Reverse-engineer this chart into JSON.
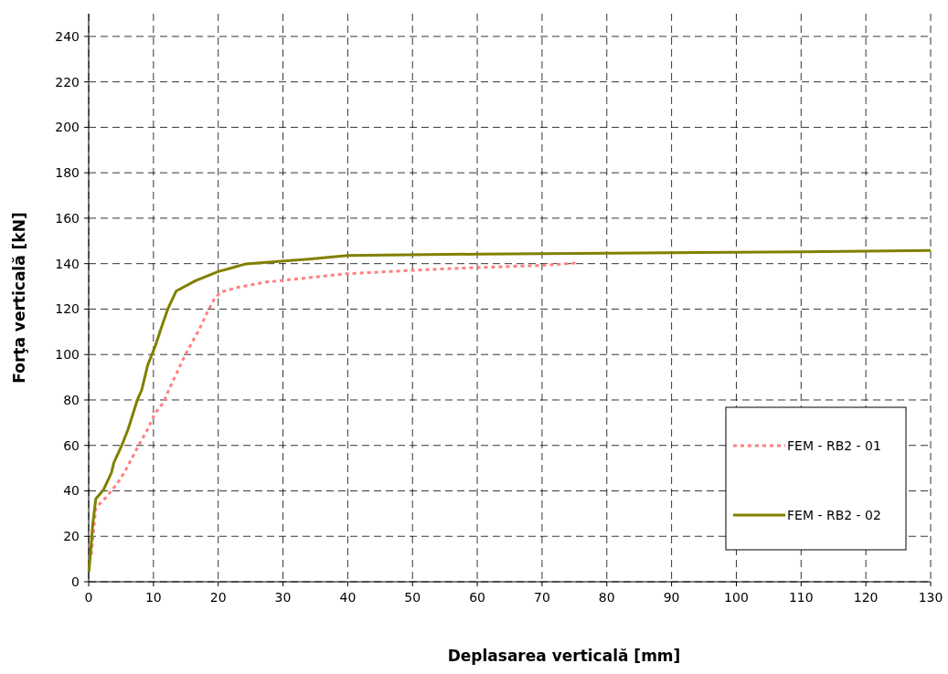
{
  "chart_data": {
    "type": "line",
    "xlabel": "Deplasarea verticală [mm]",
    "ylabel": "Forţa verticală [kN]",
    "xlim": [
      0,
      130
    ],
    "xticks": [
      0,
      10,
      20,
      30,
      40,
      50,
      60,
      70,
      80,
      90,
      100,
      110,
      120,
      130
    ],
    "ylim": [
      0,
      250
    ],
    "yticks": [
      0,
      20,
      40,
      60,
      80,
      100,
      120,
      140,
      160,
      180,
      200,
      220,
      240
    ],
    "grid": true,
    "legend": "bottom right",
    "marker": "none",
    "series": [
      {
        "name": "FEM - RB2 - 01",
        "color": "#ff8080",
        "line_style": "dotted",
        "x": [
          0.4,
          1.1,
          2.7,
          4.4,
          5.6,
          7.8,
          9.0,
          10.2,
          11.6,
          12.6,
          13.6,
          14.8,
          15.8,
          17.1,
          18.2,
          19.4,
          20.4,
          23.1,
          27.4,
          34.3,
          39.5,
          53.1,
          60.1,
          69.6,
          75.5
        ],
        "values": [
          11.9,
          32.5,
          37.2,
          43.2,
          48.5,
          60.5,
          66.5,
          73.9,
          79.2,
          85.9,
          91.9,
          99.2,
          104.5,
          111.2,
          117.9,
          124.5,
          127.5,
          129.6,
          131.9,
          133.9,
          135.5,
          137.5,
          138.3,
          139.2,
          140.3
        ]
      },
      {
        "name": "FEM - RB2 - 02",
        "color": "#808000",
        "line_style": "solid",
        "x": [
          0.04,
          0.4,
          0.6,
          1.1,
          2.3,
          3.5,
          3.9,
          5.1,
          6.1,
          7.5,
          8.2,
          9.1,
          10.3,
          11.3,
          12.2,
          13.5,
          16.5,
          20.0,
          24.3,
          30.2,
          34,
          40,
          60,
          90,
          110,
          130
        ],
        "values": [
          4.5,
          16.5,
          24.5,
          36.5,
          40.5,
          47.9,
          52.5,
          59.9,
          67.2,
          79.9,
          84.5,
          95.2,
          103.9,
          112.5,
          119.9,
          127.9,
          132.5,
          136.5,
          139.9,
          141.2,
          142,
          143.6,
          144.2,
          144.8,
          145.2,
          145.8
        ]
      }
    ]
  }
}
